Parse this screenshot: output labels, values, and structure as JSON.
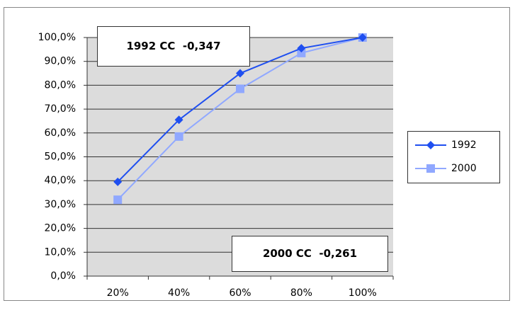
{
  "chart_data": {
    "type": "line",
    "categories": [
      "20%",
      "40%",
      "60%",
      "80%",
      "100%"
    ],
    "series": [
      {
        "name": "1992",
        "color": "#1f4ff0",
        "marker": "diamond",
        "values": [
          39.5,
          65.5,
          85,
          95.5,
          100
        ]
      },
      {
        "name": "2000",
        "color": "#90a8ff",
        "marker": "square",
        "values": [
          32,
          58.5,
          78.5,
          93.5,
          100
        ]
      }
    ],
    "ylim": [
      0,
      100
    ],
    "yticks": [
      {
        "value": 0,
        "label": "0,0%"
      },
      {
        "value": 10,
        "label": "10,0%"
      },
      {
        "value": 20,
        "label": "20,0%"
      },
      {
        "value": 30,
        "label": "30,0%"
      },
      {
        "value": 40,
        "label": "40,0%"
      },
      {
        "value": 50,
        "label": "50,0%"
      },
      {
        "value": 60,
        "label": "60,0%"
      },
      {
        "value": 70,
        "label": "70,0%"
      },
      {
        "value": 80,
        "label": "80,0%"
      },
      {
        "value": 90,
        "label": "90,0%"
      },
      {
        "value": 100,
        "label": "100,0%"
      }
    ],
    "grid": true,
    "legend": "right",
    "annotations": [
      "1992 CC  -0,347",
      "2000 CC  -0,261"
    ]
  }
}
